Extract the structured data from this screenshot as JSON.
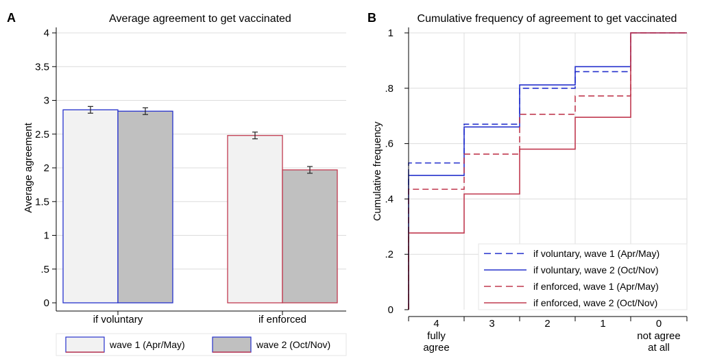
{
  "chart_data": [
    {
      "panel": "A",
      "type": "bar",
      "title": "Average agreement to get vaccinated",
      "xlabel": "",
      "ylabel": "Average agreement",
      "ylim": [
        0,
        4
      ],
      "yticks": [
        "0",
        ".5",
        "1",
        "1.5",
        "2",
        "2.5",
        "3",
        "3.5",
        "4"
      ],
      "categories": [
        "if voluntary",
        "if enforced"
      ],
      "series": [
        {
          "name": "wave 1 (Apr/May)",
          "values": [
            2.86,
            2.48
          ],
          "err": [
            0.05,
            0.05
          ],
          "fill": "#f2f2f2",
          "edge_colors": [
            "#2430cc",
            "#c0394f"
          ]
        },
        {
          "name": "wave 2 (Oct/Nov)",
          "values": [
            2.84,
            1.97
          ],
          "err": [
            0.05,
            0.05
          ],
          "fill": "#c0c0c0",
          "edge_colors": [
            "#2430cc",
            "#c0394f"
          ]
        }
      ],
      "legend_position": "bottom",
      "grid": true
    },
    {
      "panel": "B",
      "type": "line",
      "title": "Cumulative frequency of agreement to get vaccinated",
      "xlabel": "",
      "ylabel": "Cumulative frequency",
      "ylim": [
        0,
        1
      ],
      "yticks": [
        ".2",
        ".4",
        ".6",
        ".8",
        "1"
      ],
      "y_zero_label": "0",
      "x_categories": [
        {
          "value": "4",
          "sub": [
            "fully",
            "agree"
          ]
        },
        {
          "value": "3",
          "sub": []
        },
        {
          "value": "2",
          "sub": []
        },
        {
          "value": "1",
          "sub": []
        },
        {
          "value": "0",
          "sub": [
            "not agree",
            "at all"
          ]
        }
      ],
      "step": true,
      "series": [
        {
          "name": "if voluntary, wave 1 (Apr/May)",
          "color": "#2430cc",
          "dash": true,
          "values": [
            0.53,
            0.67,
            0.8,
            0.86,
            1.0
          ]
        },
        {
          "name": "if voluntary, wave 2 (Oct/Nov)",
          "color": "#2430cc",
          "dash": false,
          "values": [
            0.485,
            0.66,
            0.812,
            0.878,
            1.0
          ]
        },
        {
          "name": "if enforced, wave 1 (Apr/May)",
          "color": "#c0394f",
          "dash": true,
          "values": [
            0.435,
            0.562,
            0.706,
            0.772,
            1.0
          ]
        },
        {
          "name": "if enforced, wave 2 (Oct/Nov)",
          "color": "#c0394f",
          "dash": false,
          "values": [
            0.277,
            0.418,
            0.58,
            0.695,
            1.0
          ]
        }
      ],
      "legend_position": "bottom-right",
      "grid": true
    }
  ]
}
